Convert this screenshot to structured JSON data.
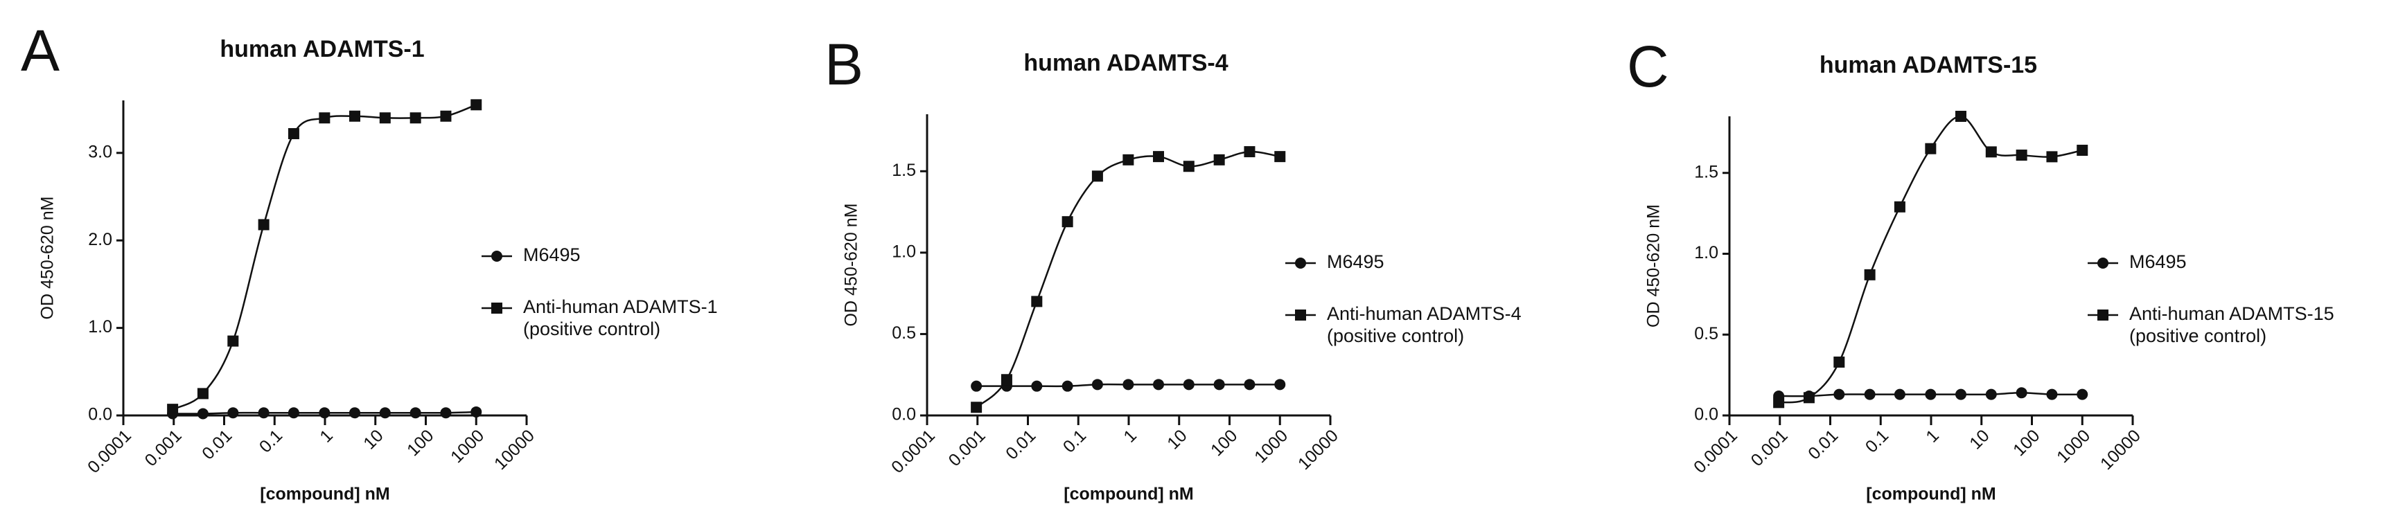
{
  "chart_data": [
    {
      "type": "scatter",
      "panel_label": "A",
      "title": "human ADAMTS-1",
      "x_label": "[compound] nM",
      "y_label": "OD 450-620 nM",
      "x_scale": "log",
      "x": [
        0.00095,
        0.0038,
        0.015,
        0.061,
        0.24,
        0.98,
        3.9,
        15.6,
        62.5,
        250,
        1000
      ],
      "series": [
        {
          "name": "M6495",
          "marker": "circle",
          "color": "#111111",
          "line": "smooth",
          "values": [
            0.02,
            0.02,
            0.03,
            0.03,
            0.03,
            0.03,
            0.03,
            0.03,
            0.03,
            0.03,
            0.04
          ]
        },
        {
          "name": "Anti-human ADAMTS-1",
          "note": "(positive control)",
          "marker": "square",
          "color": "#111111",
          "line": "smooth",
          "values": [
            0.07,
            0.25,
            0.85,
            2.18,
            3.22,
            3.4,
            3.42,
            3.4,
            3.4,
            3.42,
            3.55
          ]
        }
      ],
      "xlim": [
        0.0001,
        10000
      ],
      "xticks": [
        0.0001,
        0.001,
        0.01,
        0.1,
        1,
        10,
        100,
        1000,
        10000
      ],
      "ylim": [
        0,
        3.6
      ],
      "yticks": [
        {
          "value": 0,
          "label": "0.0"
        },
        {
          "value": 1,
          "label": "1.0"
        },
        {
          "value": 2,
          "label": "2.0"
        },
        {
          "value": 3,
          "label": "3.0"
        }
      ]
    },
    {
      "type": "scatter",
      "panel_label": "B",
      "title": "human ADAMTS-4",
      "x_label": "[compound] nM",
      "y_label": "OD 450-620 nM",
      "x_scale": "log",
      "x": [
        0.00095,
        0.0038,
        0.015,
        0.061,
        0.24,
        0.98,
        3.9,
        15.6,
        62.5,
        250,
        1000
      ],
      "series": [
        {
          "name": "M6495",
          "marker": "circle",
          "color": "#111111",
          "line": "smooth",
          "values": [
            0.18,
            0.18,
            0.18,
            0.18,
            0.19,
            0.19,
            0.19,
            0.19,
            0.19,
            0.19,
            0.19
          ]
        },
        {
          "name": "Anti-human ADAMTS-4",
          "note": "(positive control)",
          "marker": "square",
          "color": "#111111",
          "line": "smooth",
          "values": [
            0.05,
            0.22,
            0.7,
            1.19,
            1.47,
            1.57,
            1.59,
            1.53,
            1.57,
            1.62,
            1.59
          ]
        }
      ],
      "xlim": [
        0.0001,
        10000
      ],
      "xticks": [
        0.0001,
        0.001,
        0.01,
        0.1,
        1,
        10,
        100,
        1000,
        10000
      ],
      "ylim": [
        0,
        1.85
      ],
      "yticks": [
        {
          "value": 0,
          "label": "0.0"
        },
        {
          "value": 0.5,
          "label": "0.5"
        },
        {
          "value": 1,
          "label": "1.0"
        },
        {
          "value": 1.5,
          "label": "1.5"
        }
      ]
    },
    {
      "type": "scatter",
      "panel_label": "C",
      "title": "human ADAMTS-15",
      "x_label": "[compound] nM",
      "y_label": "OD 450-620 nM",
      "x_scale": "log",
      "x": [
        0.00095,
        0.0038,
        0.015,
        0.061,
        0.24,
        0.98,
        3.9,
        15.6,
        62.5,
        250,
        1000
      ],
      "series": [
        {
          "name": "M6495",
          "marker": "circle",
          "color": "#111111",
          "line": "smooth",
          "values": [
            0.12,
            0.12,
            0.13,
            0.13,
            0.13,
            0.13,
            0.13,
            0.13,
            0.14,
            0.13,
            0.13
          ]
        },
        {
          "name": "Anti-human ADAMTS-15",
          "note": "(positive control)",
          "marker": "square",
          "color": "#111111",
          "line": "smooth",
          "values": [
            0.08,
            0.11,
            0.33,
            0.87,
            1.29,
            1.65,
            1.85,
            1.63,
            1.61,
            1.6,
            1.64
          ]
        }
      ],
      "xlim": [
        0.0001,
        10000
      ],
      "xticks": [
        0.0001,
        0.001,
        0.01,
        0.1,
        1,
        10,
        100,
        1000,
        10000
      ],
      "ylim": [
        0,
        1.85
      ],
      "yticks": [
        {
          "value": 0,
          "label": "0.0"
        },
        {
          "value": 0.5,
          "label": "0.5"
        },
        {
          "value": 1,
          "label": "1.0"
        },
        {
          "value": 1.5,
          "label": "1.5"
        }
      ]
    }
  ]
}
